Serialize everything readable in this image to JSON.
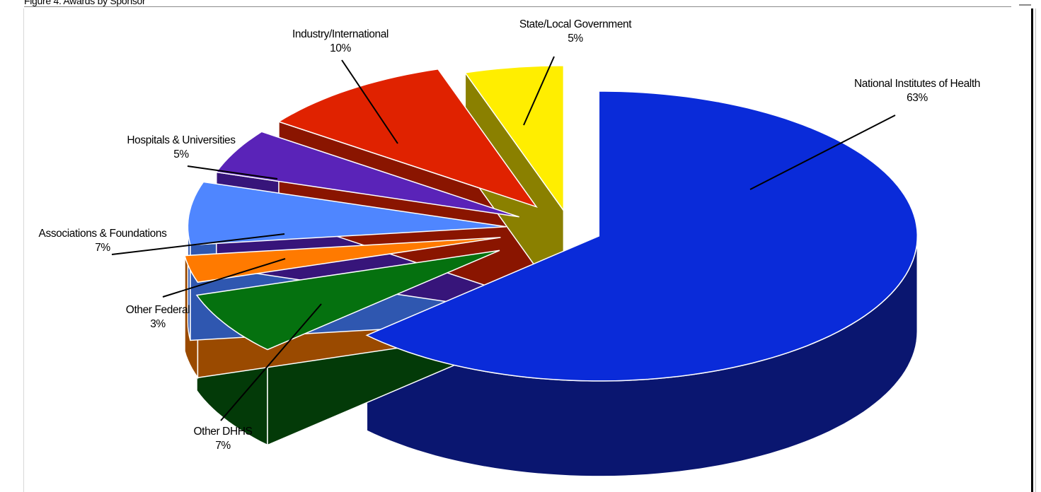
{
  "page": {
    "caption": "Figure 4. Awards by Sponsor"
  },
  "chart_data": {
    "type": "pie",
    "three_d": true,
    "exploded": true,
    "title": "",
    "legend": "none",
    "categories": [
      "National Institutes of Health",
      "Other DHHS",
      "Other Federal",
      "Associations & Foundations",
      "Hospitals & Universities",
      "Industry/International",
      "State/Local Government"
    ],
    "values": [
      63,
      7,
      3,
      7,
      5,
      10,
      5
    ],
    "labels": [
      "63%",
      "7%",
      "3%",
      "7%",
      "5%",
      "10%",
      "5%"
    ],
    "colors": [
      "#0a2bd9",
      "#05710f",
      "#ff7a00",
      "#4f86ff",
      "#5a23b8",
      "#e02200",
      "#ffee00"
    ],
    "side_colors": [
      "#0a1670",
      "#033a08",
      "#9a4a00",
      "#2f57b0",
      "#37157a",
      "#8a1500",
      "#8a8000"
    ]
  }
}
